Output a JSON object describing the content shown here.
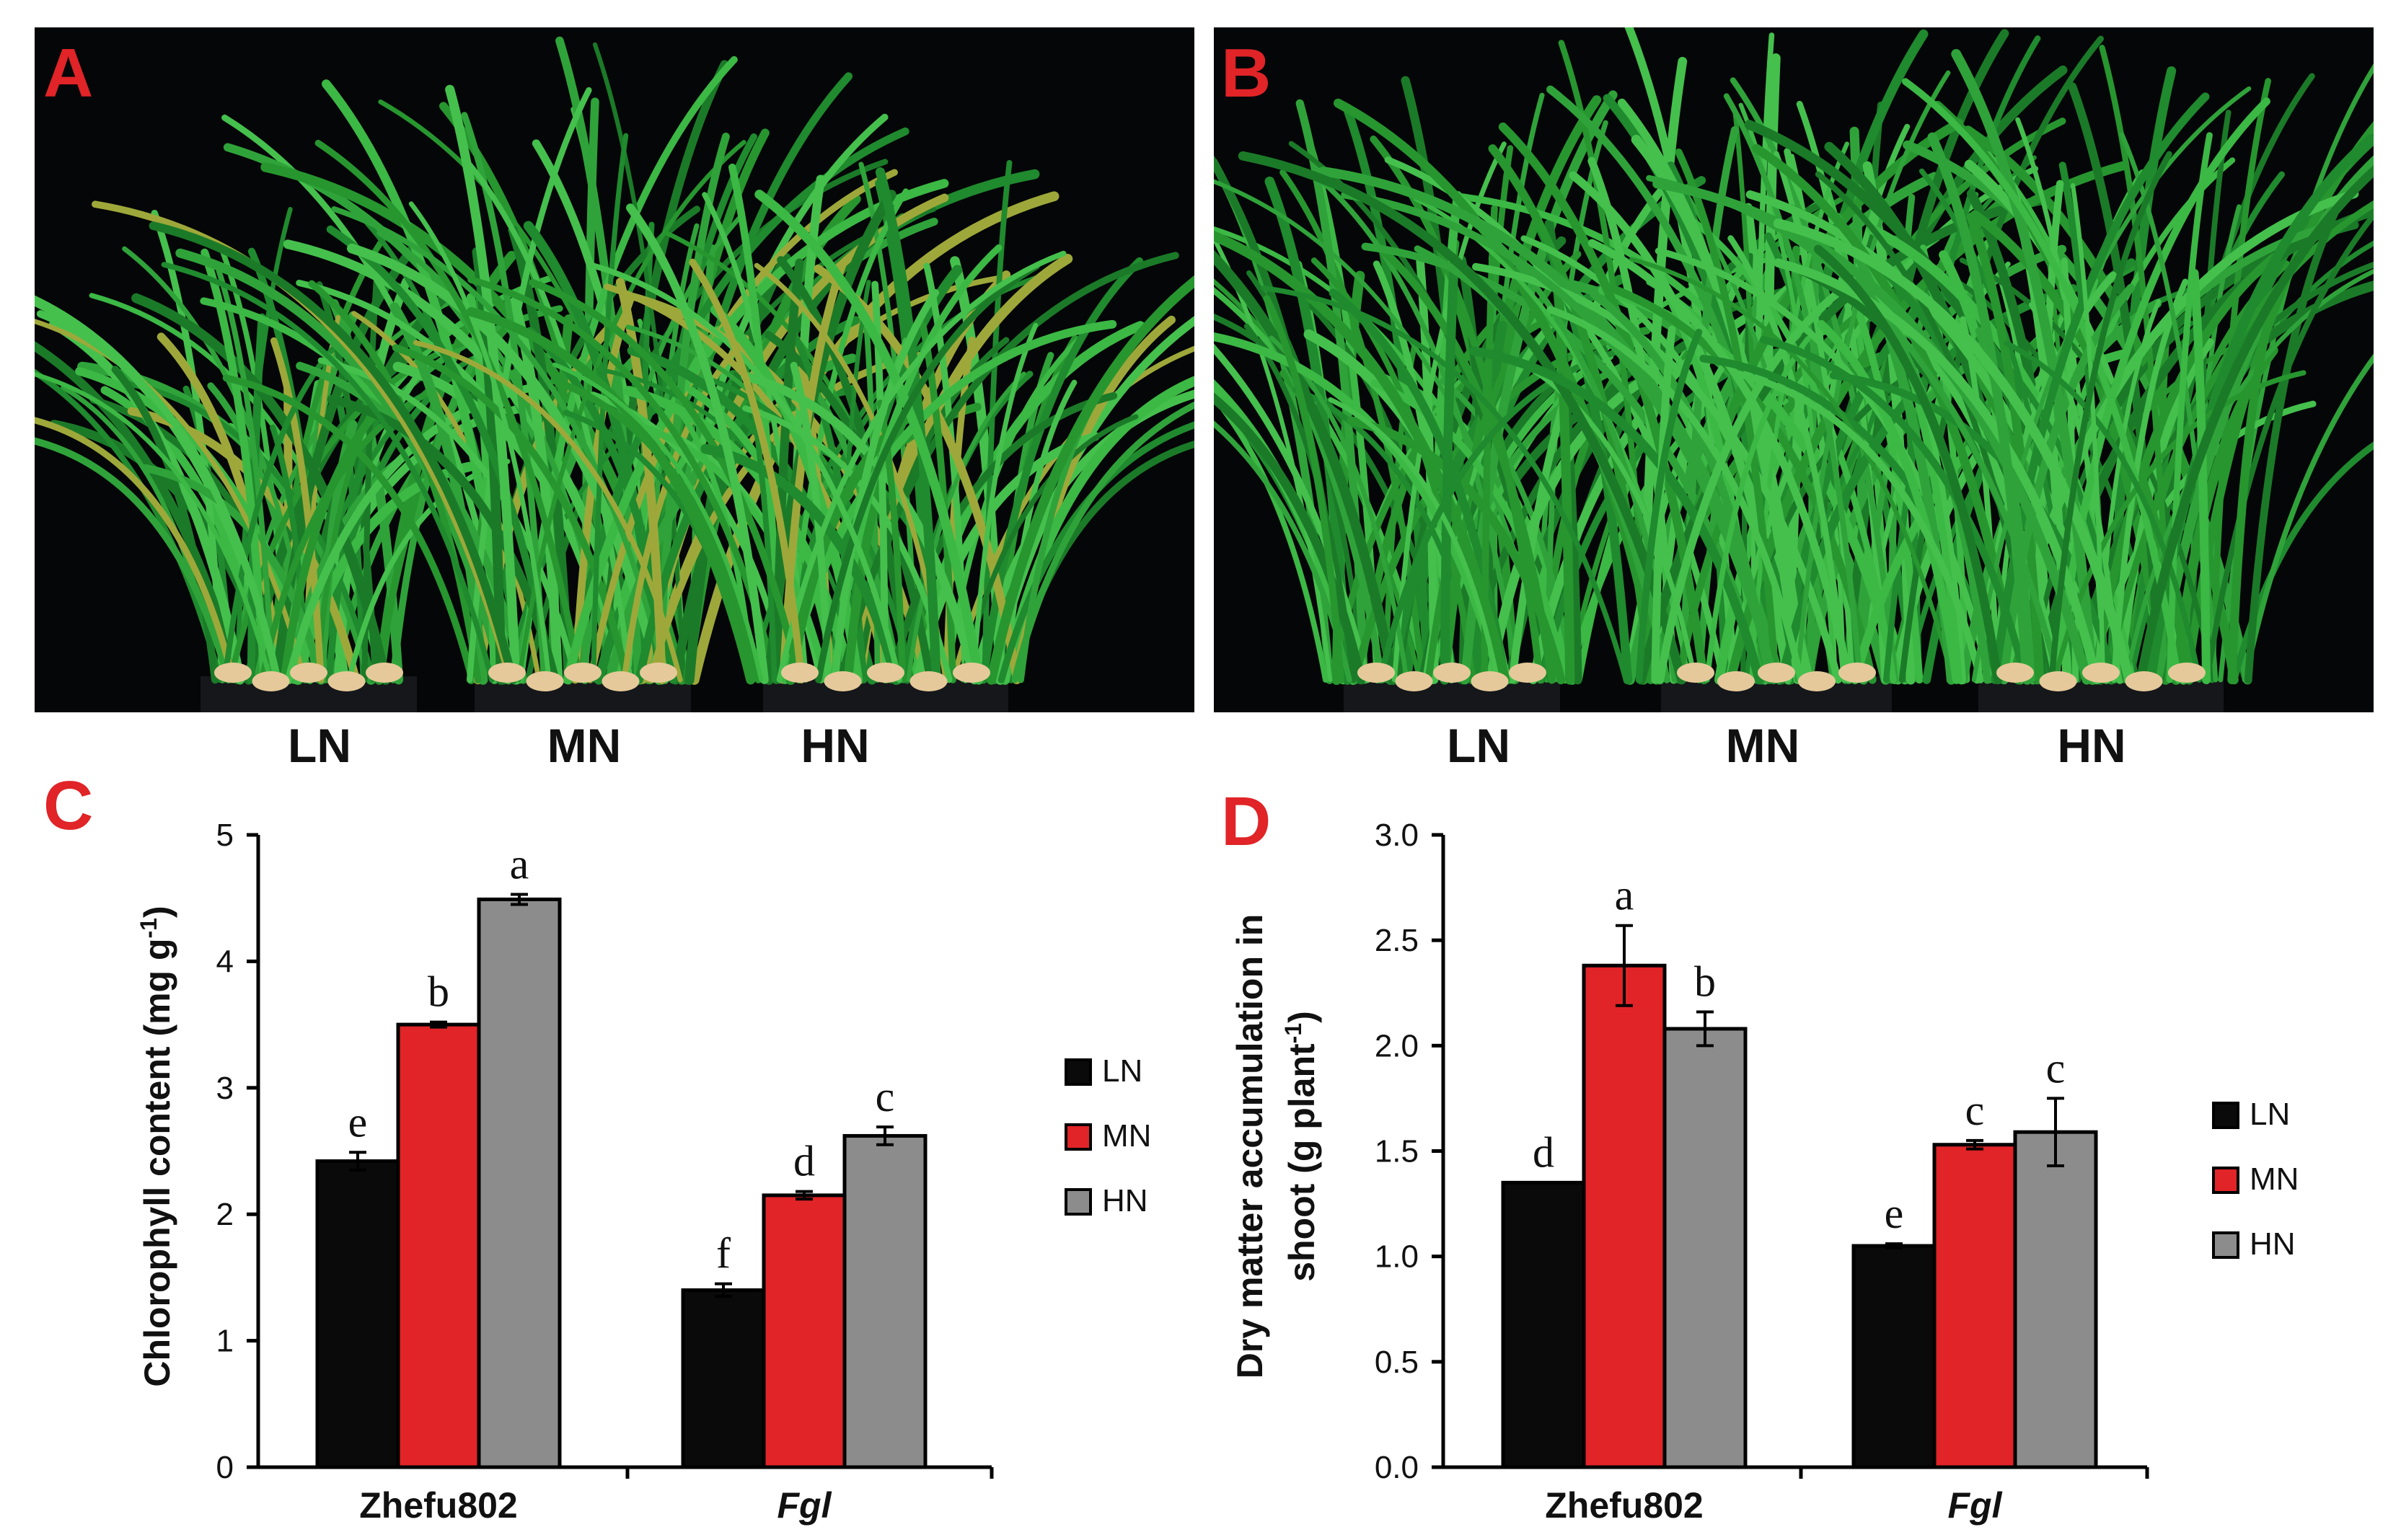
{
  "panels": {
    "A": {
      "letter": "A",
      "labels": [
        "LN",
        "MN",
        "HN"
      ]
    },
    "B": {
      "letter": "B",
      "labels": [
        "LN",
        "MN",
        "HN"
      ]
    },
    "C": {
      "letter": "C"
    },
    "D": {
      "letter": "D"
    }
  },
  "colors": {
    "LN": "#0a0a0a",
    "MN": "#e02427",
    "HN": "#8c8c8c",
    "panel_letter": "#e02427"
  },
  "chart_data": [
    {
      "id": "C",
      "type": "bar",
      "categories": [
        "Zhefu802",
        "Fgl"
      ],
      "category_italic": [
        false,
        true
      ],
      "series": [
        {
          "name": "LN",
          "values": [
            2.42,
            1.4
          ],
          "errors": [
            0.07,
            0.05
          ],
          "letters": [
            "e",
            "f"
          ]
        },
        {
          "name": "MN",
          "values": [
            3.5,
            2.15
          ],
          "errors": [
            0.02,
            0.03
          ],
          "letters": [
            "b",
            "d"
          ]
        },
        {
          "name": "HN",
          "values": [
            4.49,
            2.62
          ],
          "errors": [
            0.04,
            0.07
          ],
          "letters": [
            "a",
            "c"
          ]
        }
      ],
      "ylabel": "Chlorophyll content (mg g",
      "ylabel_sup": "-1",
      "ylabel_end": ")",
      "ylim": [
        0,
        5
      ],
      "yticks": [
        "0",
        "1",
        "2",
        "3",
        "4",
        "5"
      ],
      "legend": [
        "LN",
        "MN",
        "HN"
      ],
      "legend_position": "right",
      "grid": false
    },
    {
      "id": "D",
      "type": "bar",
      "categories": [
        "Zhefu802",
        "Fgl"
      ],
      "category_italic": [
        false,
        true
      ],
      "series": [
        {
          "name": "LN",
          "values": [
            1.35,
            1.05
          ],
          "errors": [
            0.0,
            0.01
          ],
          "letters": [
            "d",
            "e"
          ]
        },
        {
          "name": "MN",
          "values": [
            2.38,
            1.53
          ],
          "errors": [
            0.19,
            0.02
          ],
          "letters": [
            "a",
            "c"
          ]
        },
        {
          "name": "HN",
          "values": [
            2.08,
            1.59
          ],
          "errors": [
            0.08,
            0.16
          ],
          "letters": [
            "b",
            "c"
          ]
        }
      ],
      "ylabel": "Dry matter accumulation in",
      "ylabel2": "shoot (g plant",
      "ylabel2_sup": "-1",
      "ylabel2_end": ")",
      "ylim": [
        0,
        3
      ],
      "yticks": [
        "0.0",
        "0.5",
        "1.0",
        "1.5",
        "2.0",
        "2.5",
        "3.0"
      ],
      "legend": [
        "LN",
        "MN",
        "HN"
      ],
      "legend_position": "right",
      "grid": false
    }
  ]
}
